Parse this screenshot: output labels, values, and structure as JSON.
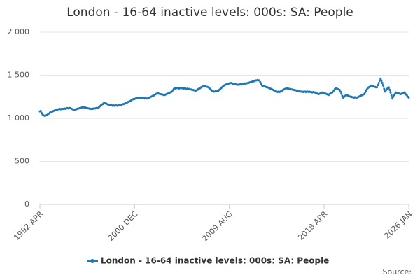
{
  "chart_data": {
    "type": "line",
    "title": "London - 16-64 inactive levels: 000s: SA: People",
    "source": "Source:",
    "categories": [
      "1992 APR",
      null,
      null,
      null,
      null,
      null,
      null,
      null,
      null,
      null,
      null,
      null,
      null,
      null,
      null,
      null,
      null,
      null,
      null,
      null,
      null,
      null,
      null,
      null,
      null,
      null,
      null,
      null,
      null,
      null,
      null,
      null,
      null,
      null,
      null,
      null,
      null,
      null,
      null,
      null,
      null,
      null,
      null,
      null,
      null,
      null,
      null,
      null,
      null,
      null,
      null,
      null,
      null,
      null,
      null,
      null,
      null,
      null,
      null,
      null,
      null,
      null,
      null,
      null,
      null,
      null,
      null,
      null,
      null,
      null,
      null,
      null,
      null,
      null,
      null,
      null,
      null,
      null,
      null,
      null,
      null,
      null,
      null,
      null,
      null,
      null,
      null,
      null,
      null,
      null,
      null,
      null,
      null,
      null,
      null,
      null,
      null,
      null,
      null,
      null,
      null,
      null,
      null,
      null,
      "2000 DEC",
      null,
      null,
      null,
      null,
      null,
      null,
      null,
      null,
      null,
      null,
      null,
      null,
      null,
      null,
      null,
      null,
      null,
      null,
      null,
      null,
      null,
      null,
      null,
      null,
      null,
      null,
      null,
      null,
      null,
      null,
      null,
      null,
      null,
      null,
      null,
      null,
      null,
      null,
      null,
      null,
      null,
      null,
      null,
      null,
      null,
      null,
      null,
      null,
      null,
      null,
      null,
      null,
      null,
      null,
      null,
      null,
      null,
      null,
      null,
      null,
      null,
      null,
      null,
      null,
      null,
      null,
      null,
      null,
      null,
      null,
      null,
      null,
      null,
      null,
      null,
      null,
      null,
      null,
      null,
      null,
      null,
      null,
      null,
      null,
      null,
      null,
      null,
      null,
      null,
      null,
      null,
      null,
      null,
      null,
      null,
      null,
      null,
      null,
      null,
      null,
      null,
      null,
      null,
      "2009 AUG",
      null,
      null,
      null,
      null,
      null,
      null,
      null,
      null,
      null,
      null,
      null,
      null,
      null,
      null,
      null,
      null,
      null,
      null,
      null,
      null,
      null,
      null,
      null,
      null,
      null,
      null,
      null,
      null,
      null,
      null,
      null,
      null,
      null,
      null,
      null,
      null,
      null,
      null,
      null,
      null,
      null,
      null,
      null,
      null,
      null,
      null,
      null,
      null,
      null,
      null,
      null,
      null,
      null,
      null,
      null,
      null,
      null,
      null,
      null,
      null,
      null,
      null,
      null,
      null,
      null,
      null,
      null,
      null,
      null,
      null,
      null,
      null,
      null,
      null,
      null,
      null,
      null,
      null,
      null,
      null,
      null,
      null,
      null,
      null,
      null,
      null,
      null,
      null,
      null,
      null,
      null,
      null,
      null,
      null,
      null,
      null,
      null,
      null,
      null,
      null,
      null,
      null,
      null,
      "2018 APR",
      null,
      null,
      null,
      null,
      null,
      null,
      null,
      null,
      null,
      null,
      null,
      null,
      null,
      null,
      null,
      null,
      null,
      null,
      null,
      null,
      null,
      null,
      null,
      null,
      null,
      null,
      null,
      null,
      null,
      null,
      null,
      null,
      null,
      null,
      null,
      null,
      null,
      null,
      null,
      null,
      null,
      null,
      null,
      null,
      null,
      null,
      null,
      null,
      null,
      null,
      null,
      null,
      null,
      null,
      null,
      null,
      null,
      null,
      null,
      null,
      null,
      null,
      null,
      null,
      null,
      null,
      null,
      null,
      null,
      null,
      null,
      null,
      null,
      null,
      null,
      null,
      null,
      null,
      null,
      null,
      null,
      null,
      null,
      null,
      null,
      null,
      null,
      null,
      null,
      null,
      null,
      null,
      "2026 JAN"
    ],
    "series": [
      {
        "name": "London - 16-64 inactive levels: 000s: SA: People",
        "color": "#1f78b4",
        "values": [
          1080,
          1085,
          1060,
          1045,
          1035,
          1030,
          1030,
          1035,
          1040,
          1050,
          1055,
          1065,
          1070,
          1075,
          1080,
          1085,
          1090,
          1095,
          1100,
          1100,
          1105,
          1105,
          1110,
          1105,
          1110,
          1110,
          1110,
          1115,
          1110,
          1115,
          1120,
          1115,
          1120,
          1120,
          1115,
          1110,
          1105,
          1100,
          1100,
          1105,
          1105,
          1110,
          1115,
          1115,
          1120,
          1120,
          1125,
          1130,
          1130,
          1125,
          1125,
          1120,
          1120,
          1115,
          1115,
          1110,
          1110,
          1110,
          1110,
          1115,
          1115,
          1115,
          1120,
          1120,
          1120,
          1130,
          1140,
          1150,
          1160,
          1165,
          1175,
          1180,
          1175,
          1170,
          1165,
          1160,
          1160,
          1155,
          1150,
          1150,
          1145,
          1150,
          1145,
          1150,
          1150,
          1145,
          1150,
          1150,
          1155,
          1155,
          1160,
          1165,
          1165,
          1170,
          1175,
          1180,
          1185,
          1190,
          1195,
          1200,
          1205,
          1215,
          1220,
          1225,
          1225,
          1230,
          1230,
          1235,
          1235,
          1240,
          1240,
          1240,
          1235,
          1235,
          1240,
          1230,
          1235,
          1230,
          1230,
          1235,
          1240,
          1245,
          1250,
          1255,
          1260,
          1265,
          1270,
          1280,
          1285,
          1290,
          1290,
          1285,
          1280,
          1280,
          1275,
          1275,
          1270,
          1270,
          1275,
          1280,
          1285,
          1290,
          1295,
          1300,
          1305,
          1310,
          1325,
          1340,
          1350,
          1345,
          1350,
          1355,
          1350,
          1345,
          1355,
          1350,
          1350,
          1350,
          1345,
          1350,
          1345,
          1340,
          1345,
          1340,
          1340,
          1335,
          1335,
          1330,
          1330,
          1325,
          1325,
          1320,
          1325,
          1330,
          1340,
          1345,
          1350,
          1360,
          1365,
          1370,
          1375,
          1370,
          1370,
          1365,
          1365,
          1360,
          1350,
          1340,
          1330,
          1320,
          1315,
          1310,
          1310,
          1315,
          1320,
          1315,
          1320,
          1330,
          1340,
          1350,
          1360,
          1370,
          1380,
          1385,
          1390,
          1395,
          1400,
          1400,
          1405,
          1410,
          1410,
          1405,
          1400,
          1400,
          1395,
          1395,
          1390,
          1390,
          1390,
          1390,
          1395,
          1390,
          1395,
          1400,
          1400,
          1405,
          1400,
          1405,
          1410,
          1410,
          1415,
          1420,
          1420,
          1425,
          1430,
          1430,
          1435,
          1440,
          1440,
          1445,
          1440,
          1440,
          1420,
          1400,
          1380,
          1375,
          1370,
          1370,
          1365,
          1360,
          1360,
          1355,
          1350,
          1345,
          1340,
          1335,
          1330,
          1325,
          1320,
          1315,
          1310,
          1305,
          1310,
          1305,
          1310,
          1315,
          1320,
          1330,
          1335,
          1340,
          1345,
          1350,
          1345,
          1345,
          1340,
          1340,
          1335,
          1335,
          1330,
          1330,
          1325,
          1325,
          1320,
          1320,
          1315,
          1315,
          1310,
          1310,
          1310,
          1305,
          1310,
          1310,
          1305,
          1310,
          1310,
          1305,
          1310,
          1305,
          1305,
          1300,
          1305,
          1300,
          1300,
          1295,
          1290,
          1285,
          1280,
          1285,
          1290,
          1295,
          1300,
          1295,
          1290,
          1290,
          1285,
          1280,
          1275,
          1270,
          1280,
          1290,
          1295,
          1300,
          1310,
          1325,
          1340,
          1350,
          1345,
          1340,
          1335,
          1330,
          1310,
          1285,
          1260,
          1240,
          1250,
          1260,
          1265,
          1270,
          1265,
          1260,
          1255,
          1250,
          1250,
          1245,
          1245,
          1240,
          1245,
          1240,
          1240,
          1245,
          1250,
          1255,
          1260,
          1265,
          1270,
          1275,
          1280,
          1300,
          1320,
          1335,
          1350,
          1360,
          1365,
          1375,
          1380,
          1375,
          1370,
          1365,
          1365,
          1360,
          1360,
          1385,
          1410,
          1435,
          1460,
          1440,
          1410,
          1380,
          1340,
          1310,
          1325,
          1340,
          1350,
          1360,
          1330,
          1300,
          1265,
          1230,
          1250,
          1270,
          1285,
          1300,
          1295,
          1290,
          1290,
          1285,
          1280,
          1285,
          1290,
          1295,
          1300,
          1290,
          1275,
          1265,
          1250,
          1240
        ]
      }
    ],
    "ylim": [
      0,
      2000
    ],
    "yticks": [
      0,
      500,
      {
        "value": 1000,
        "label": "1 000"
      },
      {
        "value": 1500,
        "label": "1 500"
      },
      {
        "value": 2000,
        "label": "2 000"
      }
    ],
    "grid": true,
    "legend": "bottom"
  }
}
